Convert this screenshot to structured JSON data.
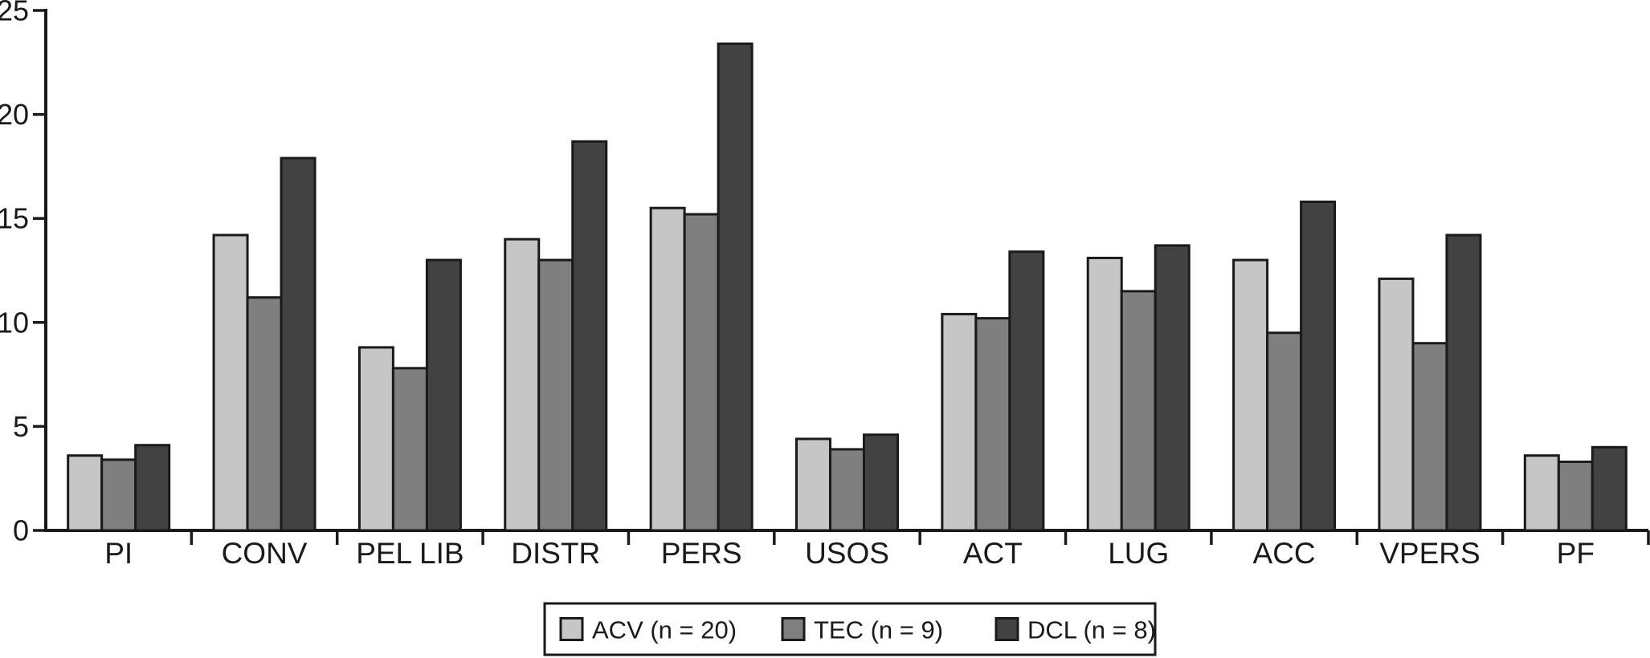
{
  "figure": {
    "background": "#ffffff",
    "axis_color": "#1a1a1a",
    "bar_border_color": "#1a1a1a"
  },
  "chart_data": {
    "type": "bar",
    "title": "",
    "xlabel": "",
    "ylabel": "",
    "grid": false,
    "ylim": [
      0,
      25
    ],
    "yticks": [
      "0",
      "5",
      "10",
      "15",
      "20",
      "25"
    ],
    "legend_position": "bottom-center",
    "categories": [
      "PI",
      "CONV",
      "PEL LIB",
      "DISTR",
      "PERS",
      "USOS",
      "ACT",
      "LUG",
      "ACC",
      "VPERS",
      "PF"
    ],
    "series": [
      {
        "name": "ACV (n = 20)",
        "key": "ACV",
        "color": "#c6c6c6",
        "values": [
          3.6,
          14.2,
          8.8,
          14.0,
          15.5,
          4.4,
          10.4,
          13.1,
          13.0,
          12.1,
          3.6
        ]
      },
      {
        "name": "TEC (n = 9)",
        "key": "TEC",
        "color": "#7f7f7f",
        "values": [
          3.4,
          11.2,
          7.8,
          13.0,
          15.2,
          3.9,
          10.2,
          11.5,
          9.5,
          9.0,
          3.3
        ]
      },
      {
        "name": "DCL (n = 8)",
        "key": "DCL",
        "color": "#424242",
        "values": [
          4.1,
          17.9,
          13.0,
          18.7,
          23.4,
          4.6,
          13.4,
          13.7,
          15.8,
          14.2,
          4.0
        ]
      }
    ]
  },
  "legend": {
    "items": [
      "ACV (n = 20)",
      "TEC (n = 9)",
      "DCL (n = 8)"
    ],
    "border_color": "#1a1a1a",
    "background": "#ffffff"
  }
}
